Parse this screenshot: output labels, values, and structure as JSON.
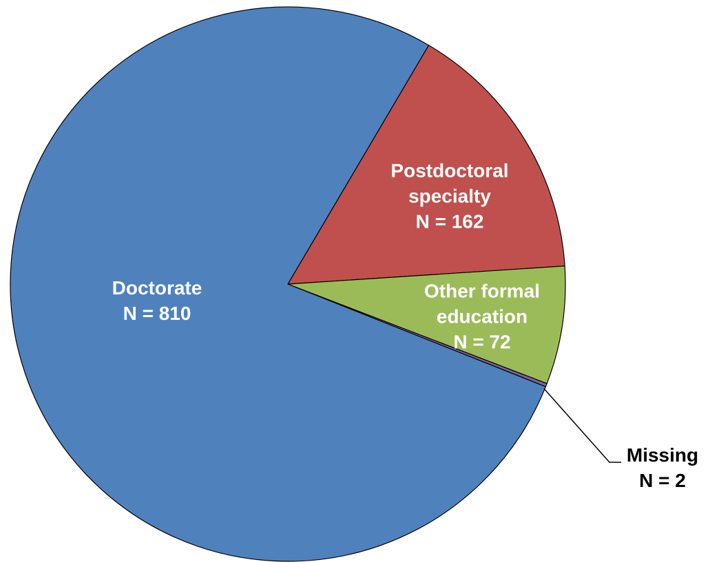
{
  "chart_data": {
    "type": "pie",
    "categories": [
      "Postdoctoral specialty",
      "Other formal education",
      "Missing",
      "Doctorate"
    ],
    "values": [
      162,
      72,
      2,
      810
    ],
    "value_labels": [
      "N = 162",
      "N = 72",
      "N = 2",
      "N = 810"
    ],
    "colors": [
      "#c0504d",
      "#9bbb59",
      "#8064a2",
      "#4f81bd"
    ]
  }
}
